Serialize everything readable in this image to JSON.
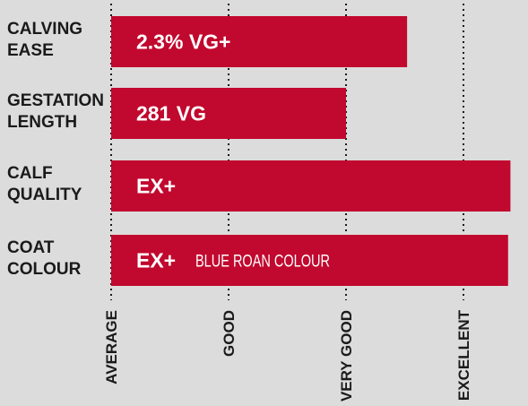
{
  "chart_data": {
    "type": "bar",
    "orientation": "horizontal",
    "xlim": [
      0,
      3.4
    ],
    "ticks": [
      {
        "value": 0,
        "label": "AVERAGE"
      },
      {
        "value": 1,
        "label": "GOOD"
      },
      {
        "value": 2,
        "label": "VERY GOOD"
      },
      {
        "value": 3,
        "label": "EXCELLENT"
      }
    ],
    "bar_color": "#c1082e",
    "bars": [
      {
        "label_lines": [
          "CALVING",
          "EASE"
        ],
        "value": 2.52,
        "value_label": "2.3% VG+",
        "note": ""
      },
      {
        "label_lines": [
          "GESTATION",
          "LENGTH"
        ],
        "value": 2.0,
        "value_label": "281 VG",
        "note": ""
      },
      {
        "label_lines": [
          "CALF",
          "QUALITY"
        ],
        "value": 3.4,
        "value_label": "EX+",
        "note": ""
      },
      {
        "label_lines": [
          "COAT",
          "COLOUR"
        ],
        "value": 3.38,
        "value_label": "EX+",
        "note": "BLUE ROAN COLOUR"
      }
    ]
  }
}
